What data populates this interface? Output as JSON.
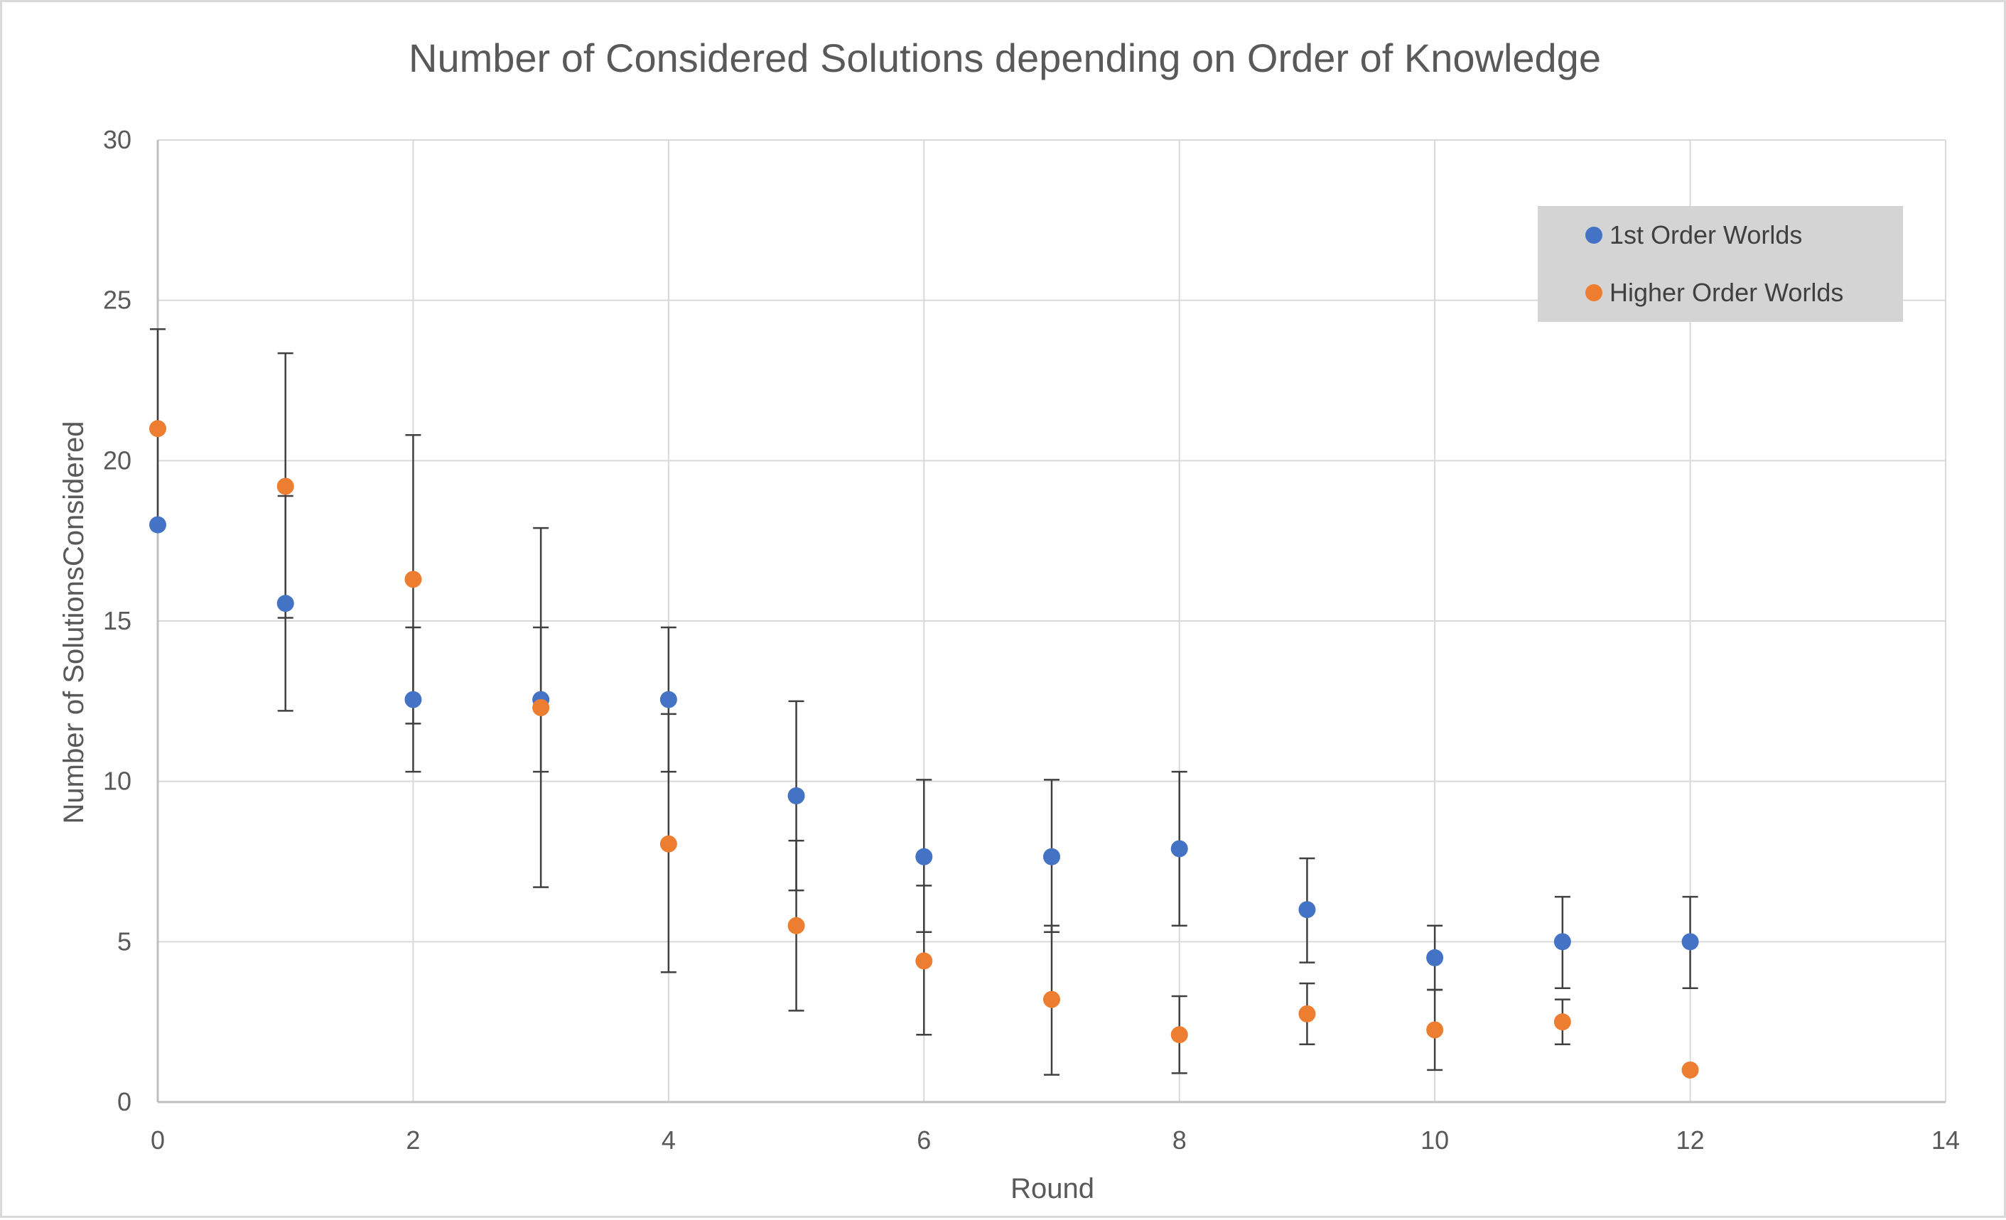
{
  "chart_data": {
    "type": "scatter",
    "title": "Number of Considered Solutions depending on Order of Knowledge",
    "xlabel": "Round",
    "ylabel": "Number of  SolutionsConsidered",
    "xlim": [
      0,
      14
    ],
    "ylim": [
      0,
      30
    ],
    "xticks": [
      0,
      2,
      4,
      6,
      8,
      10,
      12,
      14
    ],
    "yticks": [
      0,
      5,
      10,
      15,
      20,
      25,
      30
    ],
    "grid": true,
    "legend_position": "top-right",
    "series": [
      {
        "name": "1st Order Worlds",
        "color": "#4472C4",
        "x": [
          0,
          1,
          2,
          3,
          4,
          5,
          6,
          7,
          8,
          9,
          10,
          11,
          12
        ],
        "y": [
          18,
          15.55,
          12.55,
          12.55,
          12.55,
          9.55,
          7.65,
          7.65,
          7.9,
          6,
          4.5,
          5,
          5
        ],
        "err_low": [
          null,
          12.2,
          10.3,
          10.3,
          10.3,
          6.6,
          5.3,
          5.3,
          5.5,
          4.35,
          3.5,
          3.55,
          3.55
        ],
        "err_high": [
          null,
          18.9,
          14.8,
          14.8,
          14.8,
          12.5,
          10.05,
          10.05,
          10.3,
          7.6,
          5.5,
          6.4,
          6.4
        ]
      },
      {
        "name": "Higher Order Worlds",
        "color": "#ED7D31",
        "x": [
          0,
          1,
          2,
          3,
          4,
          5,
          6,
          7,
          8,
          9,
          10,
          11,
          12
        ],
        "y": [
          21,
          19.2,
          16.3,
          12.3,
          8.05,
          5.5,
          4.4,
          3.2,
          2.1,
          2.75,
          2.25,
          2.5,
          1
        ],
        "err_low": [
          18,
          15.1,
          11.8,
          6.7,
          4.05,
          2.85,
          2.1,
          0.85,
          0.9,
          1.8,
          1,
          1.8,
          null
        ],
        "err_high": [
          24.1,
          23.35,
          20.8,
          17.9,
          12.1,
          8.15,
          6.75,
          5.5,
          3.3,
          3.7,
          3.5,
          3.2,
          null
        ]
      }
    ]
  }
}
